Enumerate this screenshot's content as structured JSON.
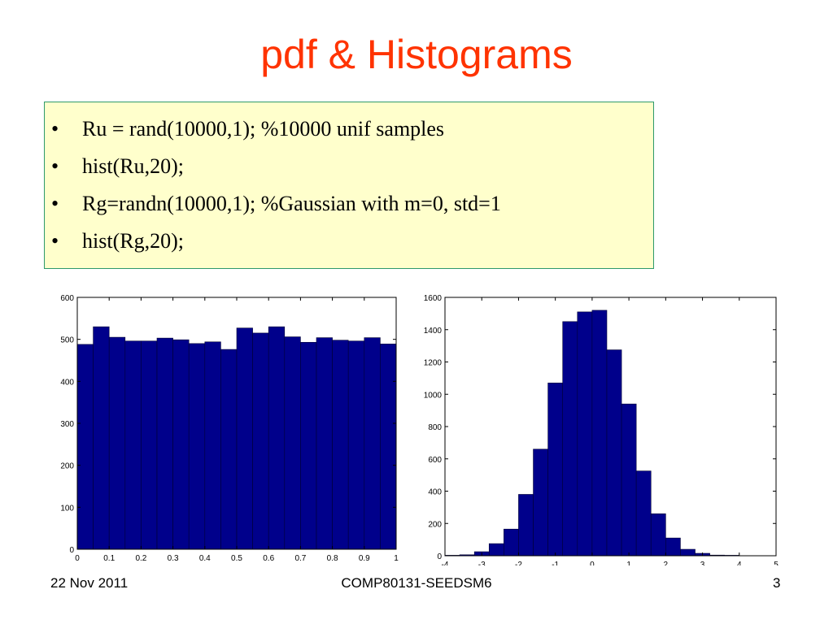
{
  "slide": {
    "title": "pdf & Histograms",
    "bullets": [
      "Ru = rand(10000,1); %10000 unif samples",
      "hist(Ru,20);",
      "Rg=randn(10000,1); %Gaussian with m=0, std=1",
      "hist(Rg,20);"
    ],
    "bullet_glyph": "•",
    "colors": {
      "title": "#ff3300",
      "box_fill": "#ffffcc",
      "box_border": "#2e9a6a",
      "bar_fill": "#00008b"
    }
  },
  "footer": {
    "date": "22 Nov 2011",
    "course": "COMP80131-SEEDSM6",
    "page": "3"
  },
  "chart_data": [
    {
      "type": "bar",
      "title": "",
      "xlabel": "",
      "ylabel": "",
      "grid": false,
      "xlim": [
        0,
        1
      ],
      "ylim": [
        0,
        600
      ],
      "x_ticks": [
        "0",
        "0.1",
        "0.2",
        "0.3",
        "0.4",
        "0.5",
        "0.6",
        "0.7",
        "0.8",
        "0.9",
        "1"
      ],
      "y_ticks": [
        "0",
        "100",
        "200",
        "300",
        "400",
        "500",
        "600"
      ],
      "bin_edges": [
        0,
        0.05,
        0.1,
        0.15,
        0.2,
        0.25,
        0.3,
        0.35,
        0.4,
        0.45,
        0.5,
        0.55,
        0.6,
        0.65,
        0.7,
        0.75,
        0.8,
        0.85,
        0.9,
        0.95,
        1
      ],
      "values": [
        488,
        530,
        505,
        496,
        496,
        503,
        499,
        490,
        494,
        476,
        527,
        515,
        530,
        506,
        493,
        504,
        498,
        496,
        504,
        489
      ]
    },
    {
      "type": "bar",
      "title": "",
      "xlabel": "",
      "ylabel": "",
      "grid": false,
      "xlim": [
        -4,
        5
      ],
      "ylim": [
        0,
        1600
      ],
      "x_ticks": [
        "-4",
        "-3",
        "-2",
        "-1",
        "0",
        "1",
        "2",
        "3",
        "4",
        "5"
      ],
      "y_ticks": [
        "0",
        "200",
        "400",
        "600",
        "800",
        "1000",
        "1200",
        "1400",
        "1600"
      ],
      "bin_edges": [
        -4,
        -3.6,
        -3.2,
        -2.8,
        -2.4,
        -2.0,
        -1.6,
        -1.2,
        -0.8,
        -0.4,
        0.0,
        0.4,
        0.8,
        1.2,
        1.6,
        2.0,
        2.4,
        2.8,
        3.2,
        3.6,
        4.0
      ],
      "values": [
        3,
        6,
        25,
        75,
        165,
        380,
        660,
        1070,
        1450,
        1510,
        1520,
        1275,
        940,
        525,
        260,
        110,
        40,
        15,
        4,
        3
      ]
    }
  ]
}
